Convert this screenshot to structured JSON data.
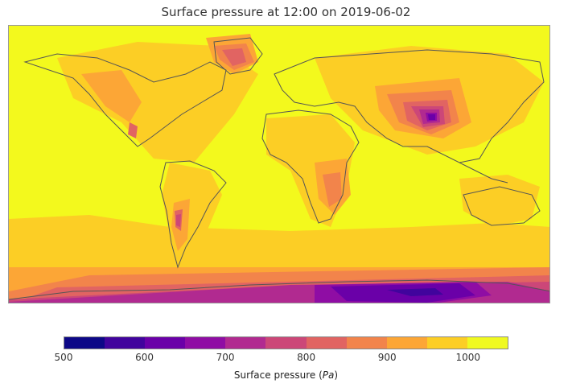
{
  "title": "Surface pressure at 12:00 on 2019-06-02",
  "colorbar": {
    "label": "Surface pressure",
    "unit": "Pa",
    "ticks": [
      "500",
      "600",
      "700",
      "800",
      "900",
      "1000"
    ],
    "range": [
      500,
      1050
    ],
    "levels": [
      500,
      550,
      600,
      650,
      700,
      750,
      800,
      850,
      900,
      950,
      1000,
      1050
    ],
    "colors": [
      "#0d0887",
      "#41049d",
      "#6a00a8",
      "#8f0da4",
      "#b12a90",
      "#cc4778",
      "#e16462",
      "#f2844b",
      "#fca636",
      "#fcce25",
      "#f0f921"
    ]
  },
  "map": {
    "projection": "plate-carree",
    "coastline_color": "#555555",
    "ocean_background_color": "#f3f91d"
  }
}
